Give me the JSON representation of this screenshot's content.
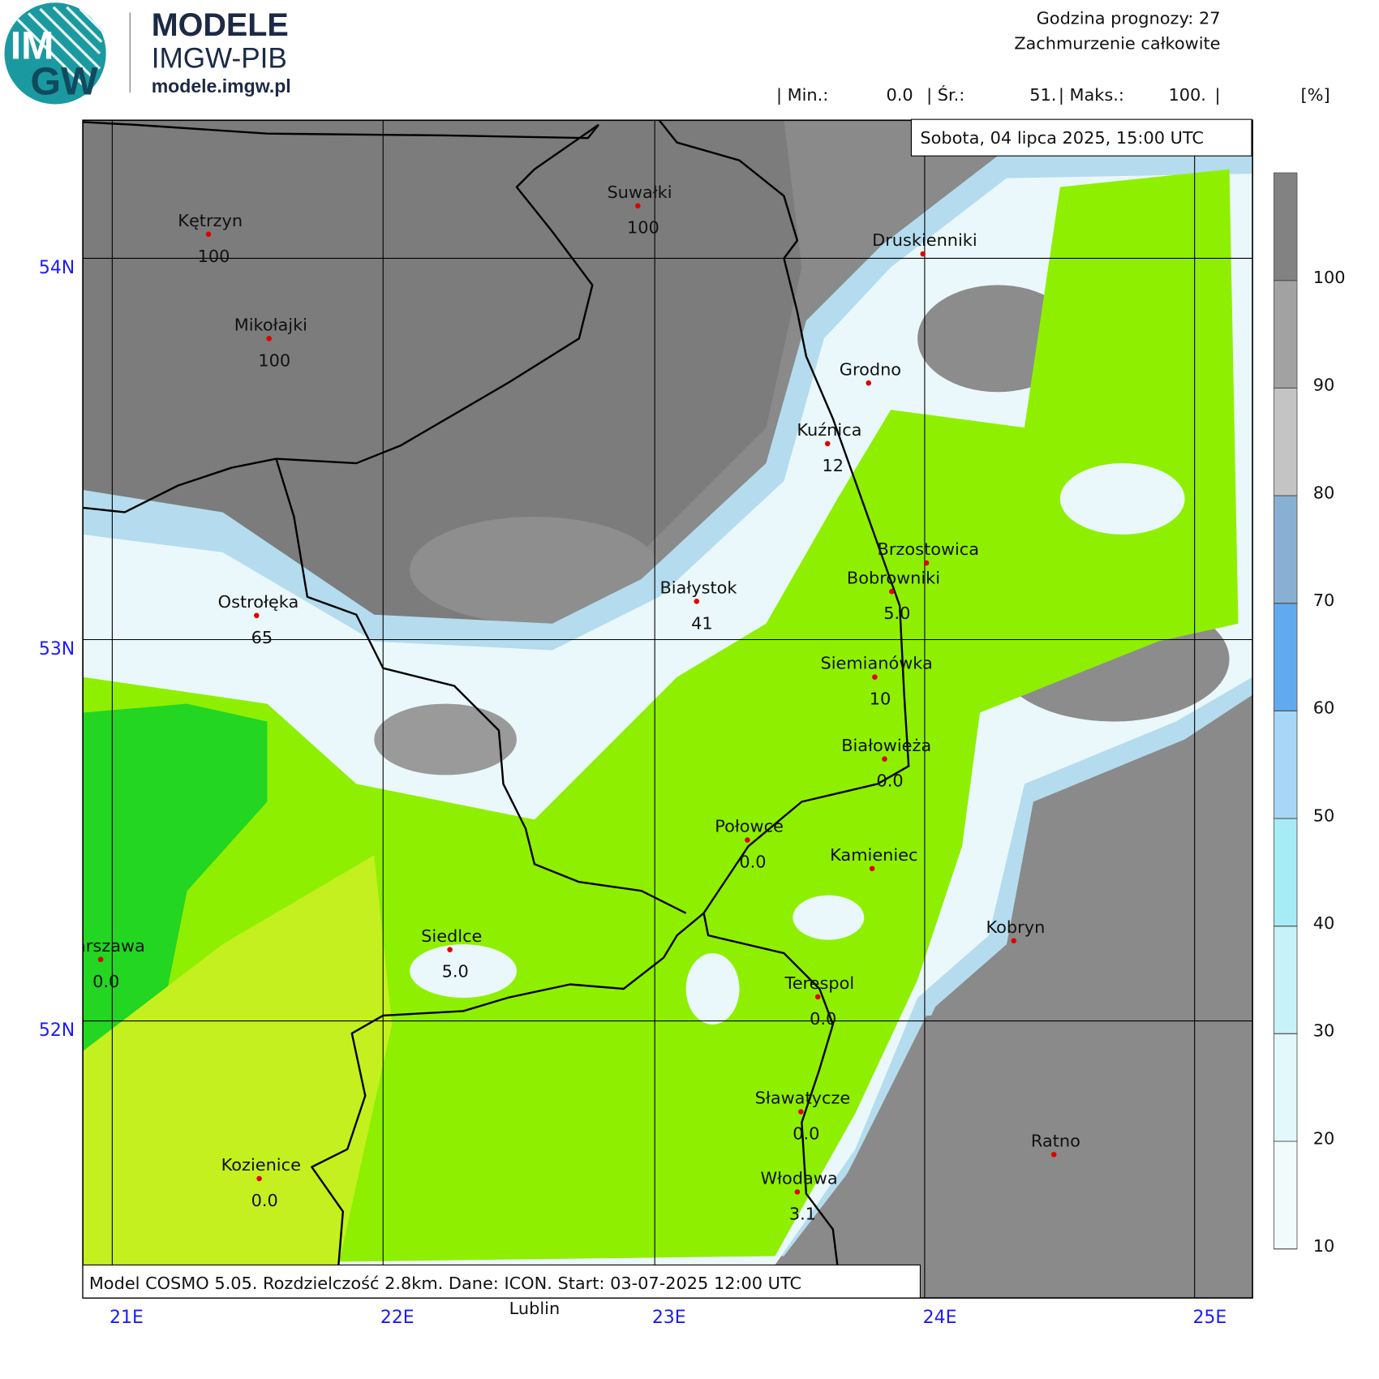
{
  "logo": {
    "text_top": "IM",
    "text_bottom": "GW",
    "title": "MODELE",
    "subtitle": "IMGW-PIB",
    "url": "modele.imgw.pl"
  },
  "header": {
    "forecast_hour": "Godzina prognozy: 27",
    "parameter": "Zachmurzenie całkowite",
    "stats": [
      {
        "label": "| Min.:",
        "value": "0.0"
      },
      {
        "label": "| Śr.:",
        "value": "51."
      },
      {
        "label": "| Maks.:",
        "value": "100."
      }
    ],
    "stats_end": "|",
    "unit": "[%]"
  },
  "date": "Sobota, 04 lipca 2025, 15:00 UTC",
  "footer": "Model COSMO 5.05. Rozdzielczość 2.8km. Dane: ICON. Start: 03-07-2025 12:00 UTC",
  "outside_label": "Lublin",
  "latitudes": [
    "54N",
    "53N",
    "52N"
  ],
  "longitudes": [
    "21E",
    "22E",
    "23E",
    "24E",
    "25E"
  ],
  "cities": [
    {
      "name": "Kętrzyn",
      "value": "100"
    },
    {
      "name": "Suwałki",
      "value": "100"
    },
    {
      "name": "Mikołajki",
      "value": "100"
    },
    {
      "name": "Druskienniki"
    },
    {
      "name": "Grodno"
    },
    {
      "name": "Kuźnica",
      "value": "12"
    },
    {
      "name": "Ostrołęka",
      "value": "65"
    },
    {
      "name": "Białystok",
      "value": "41"
    },
    {
      "name": "Brzostowica"
    },
    {
      "name": "Bobrowniki",
      "value": "5.0"
    },
    {
      "name": "Siemianówka",
      "value": "10"
    },
    {
      "name": "Białowieża",
      "value": "0.0"
    },
    {
      "name": "Połowce",
      "value": "0.0"
    },
    {
      "name": "Kamieniec"
    },
    {
      "name": "Kobryn"
    },
    {
      "name": "Warszawa",
      "value": "0.0"
    },
    {
      "name": "Siedlce",
      "value": "5.0"
    },
    {
      "name": "Terespol",
      "value": "0.0"
    },
    {
      "name": "Sławatycze",
      "value": "0.0"
    },
    {
      "name": "Ratno"
    },
    {
      "name": "Kozienice",
      "value": "0.0"
    },
    {
      "name": "Włodawa",
      "value": "3.1"
    }
  ],
  "legend": {
    "range": [
      10,
      110
    ],
    "ticks": [
      10,
      20,
      30,
      40,
      50,
      60,
      70,
      80,
      90,
      100
    ],
    "colors": [
      "#f2fbfc",
      "#e2f8fa",
      "#c6f2f8",
      "#a6ecf6",
      "#a8d6f6",
      "#62aaf0",
      "#88b0d2",
      "#c4c4c4",
      "#a2a2a2",
      "#828282"
    ]
  }
}
